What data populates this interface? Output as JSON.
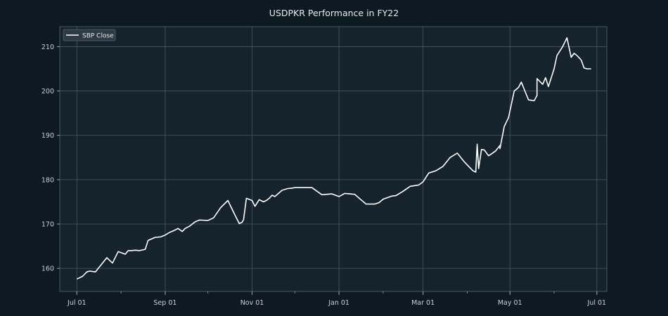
{
  "chart_data": {
    "type": "line",
    "title": "USDPKR Performance in FY22",
    "xlabel": "",
    "ylabel": "",
    "x_range": [
      "2021-06-19",
      "2022-07-08"
    ],
    "ylim": [
      154.8,
      214.5
    ],
    "x_ticks": [
      {
        "date": "2021-07-01",
        "label": "Jul 01"
      },
      {
        "date": "2021-09-01",
        "label": "Sep 01"
      },
      {
        "date": "2021-11-01",
        "label": "Nov 01"
      },
      {
        "date": "2022-01-01",
        "label": "Jan 01"
      },
      {
        "date": "2022-03-01",
        "label": "Mar 01"
      },
      {
        "date": "2022-05-01",
        "label": "May 01"
      },
      {
        "date": "2022-07-01",
        "label": "Jul 01"
      }
    ],
    "y_ticks": [
      160,
      170,
      180,
      190,
      200,
      210
    ],
    "grid": true,
    "legend_position": "top-left",
    "colors": {
      "background": "#0e1a22",
      "plot_area": "#15232c",
      "grid": "#4a5862",
      "line": "#ffffff"
    },
    "series": [
      {
        "name": "SBP Close",
        "x": [
          "2021-07-01",
          "2021-07-05",
          "2021-07-08",
          "2021-07-10",
          "2021-07-14",
          "2021-07-20",
          "2021-07-22",
          "2021-07-26",
          "2021-07-30",
          "2021-08-04",
          "2021-08-06",
          "2021-08-08",
          "2021-08-11",
          "2021-08-14",
          "2021-08-18",
          "2021-08-20",
          "2021-08-25",
          "2021-08-29",
          "2021-09-01",
          "2021-09-04",
          "2021-09-07",
          "2021-09-10",
          "2021-09-13",
          "2021-09-15",
          "2021-09-18",
          "2021-09-22",
          "2021-09-25",
          "2021-10-01",
          "2021-10-05",
          "2021-10-10",
          "2021-10-15",
          "2021-10-20",
          "2021-10-23",
          "2021-10-25",
          "2021-10-26",
          "2021-10-28",
          "2021-11-01",
          "2021-11-03",
          "2021-11-06",
          "2021-11-09",
          "2021-11-11",
          "2021-11-13",
          "2021-11-15",
          "2021-11-17",
          "2021-11-22",
          "2021-11-26",
          "2021-11-29",
          "2021-12-01",
          "2021-12-06",
          "2021-12-13",
          "2021-12-20",
          "2021-12-27",
          "2022-01-01",
          "2022-01-05",
          "2022-01-12",
          "2022-01-20",
          "2022-01-26",
          "2022-01-29",
          "2022-02-01",
          "2022-02-07",
          "2022-02-10",
          "2022-02-15",
          "2022-02-20",
          "2022-02-26",
          "2022-03-01",
          "2022-03-05",
          "2022-03-10",
          "2022-03-15",
          "2022-03-20",
          "2022-03-25",
          "2022-03-30",
          "2022-04-02",
          "2022-04-05",
          "2022-04-07",
          "2022-04-09",
          "2022-04-11",
          "2022-04-13",
          "2022-04-16",
          "2022-04-18",
          "2022-04-21",
          "2022-04-24",
          "2022-04-27",
          "2022-04-30",
          "2022-05-04",
          "2022-05-07",
          "2022-05-09",
          "2022-05-12",
          "2022-05-14",
          "2022-05-18",
          "2022-05-20",
          "2022-05-24",
          "2022-05-26",
          "2022-05-28",
          "2022-05-30",
          "2022-06-01",
          "2022-06-03",
          "2022-06-07",
          "2022-06-10",
          "2022-06-13",
          "2022-06-15",
          "2022-06-17",
          "2022-06-20",
          "2022-06-22",
          "2022-06-24",
          "2022-06-27"
        ],
        "values": [
          157.6,
          158.2,
          159.2,
          159.4,
          159.2,
          161.6,
          162.4,
          161.2,
          163.8,
          163.2,
          164.0,
          164.0,
          164.1,
          164.0,
          164.3,
          166.3,
          167.0,
          167.1,
          167.5,
          168.1,
          168.5,
          169.0,
          168.3,
          169.0,
          169.5,
          170.5,
          170.9,
          170.8,
          171.4,
          173.7,
          175.3,
          172.0,
          170.1,
          170.4,
          171.0,
          175.8,
          175.3,
          174.0,
          175.5,
          175.0,
          175.3,
          175.8,
          176.5,
          176.2,
          177.6,
          178.0,
          178.1,
          178.2,
          178.2,
          178.2,
          176.6,
          176.8,
          176.2,
          176.9,
          176.7,
          174.5,
          174.5,
          174.8,
          175.6,
          176.3,
          176.4,
          177.4,
          178.5,
          178.8,
          179.5,
          181.5,
          182.0,
          183.0,
          185.0,
          186.0,
          184.0,
          183.0,
          182.0,
          181.7,
          182.5,
          186.8,
          186.7,
          185.4,
          185.8,
          186.5,
          187.7,
          192.0,
          194.0,
          200.0,
          200.8,
          202.0,
          199.6,
          198.0,
          197.8,
          199.0,
          201.5,
          203.0,
          201.0,
          203.0,
          205.0,
          208.0,
          210.0,
          212.0,
          207.6,
          208.5,
          208.0,
          207.0,
          205.2,
          205.0,
          205.0
        ]
      }
    ],
    "annotations": [
      {
        "date": "2022-04-08",
        "value": 188.0
      },
      {
        "date": "2022-04-24",
        "value": 187.0
      },
      {
        "date": "2022-05-20",
        "value": 202.8
      }
    ]
  }
}
